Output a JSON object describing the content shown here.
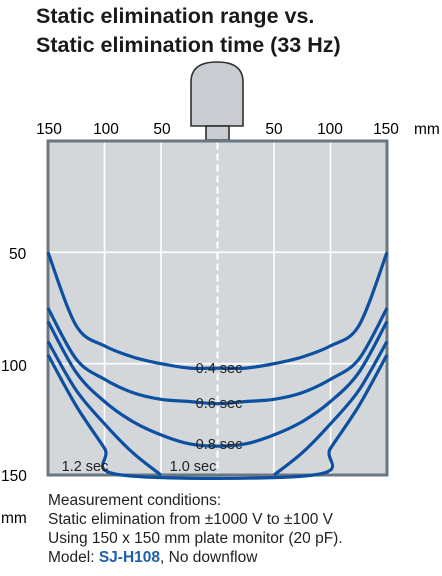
{
  "title": {
    "line1": "Static elimination range vs.",
    "line2": "Static elimination time (33 Hz)"
  },
  "conditions": {
    "heading": "Measurement conditions:",
    "line1": "Static elimination from ±1000 V to ±100 V",
    "line2": "Using 150 x 150 mm plate monitor (20 pF).",
    "model_prefix": "Model: ",
    "model": "SJ-H108",
    "model_suffix": ", No downflow"
  },
  "colors": {
    "plot_bg": "#d3d7da",
    "frame": "#6b7780",
    "curve": "#0d4fa0",
    "grid": "#ffffff",
    "device": "#c9cdd1",
    "model_text": "#1f5fa8"
  },
  "icons": {
    "device": "ionizer-head-icon"
  },
  "chart_data": {
    "type": "line",
    "title": "",
    "x_ticks": [
      "150",
      "100",
      "50",
      "50",
      "100",
      "150"
    ],
    "x_unit": "mm",
    "y_ticks": [
      "50",
      "100",
      "150"
    ],
    "y_unit": "mm",
    "xlim": [
      -150,
      150
    ],
    "ylim": [
      0,
      150
    ],
    "grid": true,
    "series": [
      {
        "name": "0.4 sec",
        "x": [
          -150,
          -125,
          -100,
          -75,
          -50,
          -25,
          0,
          25,
          50,
          75,
          100,
          125,
          150
        ],
        "y": [
          50,
          83,
          92,
          97,
          100,
          102,
          102,
          102,
          100,
          97,
          92,
          83,
          50
        ]
      },
      {
        "name": "0.6 sec",
        "x": [
          -150,
          -125,
          -100,
          -75,
          -50,
          -25,
          0,
          25,
          50,
          75,
          100,
          125,
          150
        ],
        "y": [
          75,
          98,
          107,
          113,
          116,
          117,
          118,
          117,
          116,
          113,
          107,
          98,
          75
        ]
      },
      {
        "name": "0.8 sec",
        "x": [
          -150,
          -125,
          -100,
          -75,
          -50,
          -25,
          0,
          25,
          50,
          75,
          100,
          125,
          150
        ],
        "y": [
          81,
          104,
          117,
          126,
          132,
          136,
          137,
          136,
          132,
          126,
          117,
          104,
          81
        ]
      },
      {
        "name": "1.0 sec",
        "x": [
          -150,
          -125,
          -100,
          -75,
          -50,
          -50,
          50,
          75,
          100,
          125,
          150
        ],
        "y": [
          90,
          112,
          127,
          140,
          150,
          null,
          150,
          140,
          127,
          112,
          90
        ]
      },
      {
        "name": "1.2 sec",
        "x": [
          -150,
          -125,
          -100,
          -85,
          85,
          100,
          125,
          150
        ],
        "y": [
          96,
          119,
          138,
          150,
          150,
          138,
          119,
          96
        ]
      }
    ]
  }
}
